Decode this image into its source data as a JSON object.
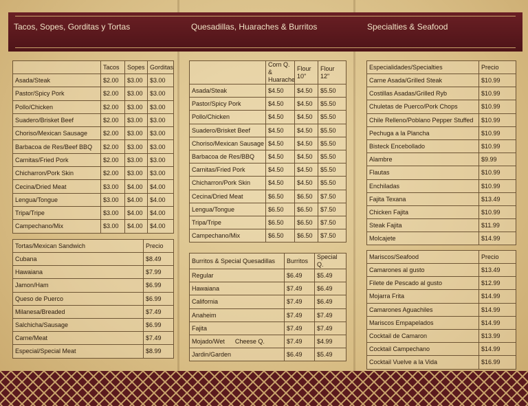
{
  "panels": [
    {
      "title": "Tacos, Sopes, Gorditas y Tortas",
      "tables": [
        {
          "columns": [
            "Tacos",
            "Sopes",
            "Gorditas"
          ],
          "rows": [
            [
              "Asada/Steak",
              "$2.00",
              "$3.00",
              "$3.00"
            ],
            [
              "Pastor/Spicy Pork",
              "$2.00",
              "$3.00",
              "$3.00"
            ],
            [
              "Pollo/Chicken",
              "$2.00",
              "$3.00",
              "$3.00"
            ],
            [
              "Suadero/Brisket Beef",
              "$2.00",
              "$3.00",
              "$3.00"
            ],
            [
              "Choriso/Mexican Sausage",
              "$2.00",
              "$3.00",
              "$3.00"
            ],
            [
              "Barbacoa de Res/Beef BBQ",
              "$2.00",
              "$3.00",
              "$3.00"
            ],
            [
              "Carnitas/Fried Pork",
              "$2.00",
              "$3.00",
              "$3.00"
            ],
            [
              "Chicharron/Pork Skin",
              "$2.00",
              "$3.00",
              "$3.00"
            ],
            [
              "Cecina/Dried Meat",
              "$3.00",
              "$4.00",
              "$4.00"
            ],
            [
              "Lengua/Tongue",
              "$3.00",
              "$4.00",
              "$4.00"
            ],
            [
              "Tripa/Tripe",
              "$3.00",
              "$4.00",
              "$4.00"
            ],
            [
              "Campechano/Mix",
              "$3.00",
              "$4.00",
              "$4.00"
            ]
          ]
        },
        {
          "columns": [
            "Tortas/Mexican Sandwich",
            "Precio"
          ],
          "rows": [
            [
              "Cubana",
              "$8.49"
            ],
            [
              "Hawaiana",
              "$7.99"
            ],
            [
              "Jamon/Ham",
              "$6.99"
            ],
            [
              "Queso de Puerco",
              "$6.99"
            ],
            [
              "Milanesa/Breaded",
              "$7.49"
            ],
            [
              "Salchicha/Sausage",
              "$6.99"
            ],
            [
              "Carne/Meat",
              "$7.49"
            ],
            [
              "Especial/Special Meat",
              "$8.99"
            ]
          ]
        }
      ]
    },
    {
      "title": "Quesadillas, Huaraches & Burritos",
      "tables": [
        {
          "columns": [
            "Corn Q. & Huaraches",
            "Flour 10\"",
            "Flour 12\""
          ],
          "rows": [
            [
              "Asada/Steak",
              "$4.50",
              "$4.50",
              "$5.50"
            ],
            [
              "Pastor/Spicy Pork",
              "$4.50",
              "$4.50",
              "$5.50"
            ],
            [
              "Pollo/Chicken",
              "$4.50",
              "$4.50",
              "$5.50"
            ],
            [
              "Suadero/Brisket Beef",
              "$4.50",
              "$4.50",
              "$5.50"
            ],
            [
              "Choriso/Mexican Sausage",
              "$4.50",
              "$4.50",
              "$5.50"
            ],
            [
              "Barbacoa de Res/BBQ",
              "$4.50",
              "$4.50",
              "$5.50"
            ],
            [
              "Carnitas/Fried Pork",
              "$4.50",
              "$4.50",
              "$5.50"
            ],
            [
              "Chicharron/Pork Skin",
              "$4.50",
              "$4.50",
              "$5.50"
            ],
            [
              "Cecina/Dried Meat",
              "$6.50",
              "$6.50",
              "$7.50"
            ],
            [
              "Lengua/Tongue",
              "$6.50",
              "$6.50",
              "$7.50"
            ],
            [
              "Tripa/Tripe",
              "$6.50",
              "$6.50",
              "$7.50"
            ],
            [
              "Campechano/Mix",
              "$6.50",
              "$6.50",
              "$7.50"
            ]
          ]
        },
        {
          "columns": [
            "Burritos & Special Quesadillas",
            "Burritos",
            "Special Q."
          ],
          "rows": [
            [
              "Regular",
              "$6.49",
              "$5.49"
            ],
            [
              "Hawaiana",
              "$7.49",
              "$6.49"
            ],
            [
              "California",
              "$7.49",
              "$6.49"
            ],
            [
              "Anaheim",
              "$7.49",
              "$7.49"
            ],
            [
              "Fajita",
              "$7.49",
              "$7.49"
            ],
            [
              "Mojado/Wet      Cheese Q.",
              "$7.49",
              "$4.99"
            ],
            [
              "Jardin/Garden",
              "$6.49",
              "$5.49"
            ]
          ]
        }
      ]
    },
    {
      "title": "Specialties & Seafood",
      "tables": [
        {
          "columns": [
            "Especialidades/Specialties",
            "Precio"
          ],
          "rows": [
            [
              "Carne Asada/Grilled Steak",
              "$10.99"
            ],
            [
              "Costillas Asadas/Grilled Ryb",
              "$10.99"
            ],
            [
              "Chuletas de Puerco/Pork Chops",
              "$10.99"
            ],
            [
              "Chile Relleno/Poblano Pepper Stuffed",
              "$10.99"
            ],
            [
              "Pechuga a la Plancha",
              "$10.99"
            ],
            [
              "Bisteck Encebollado",
              "$10.99"
            ],
            [
              "Alambre",
              "$9.99"
            ],
            [
              "Flautas",
              "$10.99"
            ],
            [
              "Enchiladas",
              "$10.99"
            ],
            [
              "Fajita Texana",
              "$13.49"
            ],
            [
              "Chicken Fajita",
              "$10.99"
            ],
            [
              "Steak Fajita",
              "$11.99"
            ],
            [
              "Molcajete",
              "$14.99"
            ]
          ]
        },
        {
          "columns": [
            "Mariscos/Seafood",
            "Precio"
          ],
          "rows": [
            [
              "Camarones al gusto",
              "$13.49"
            ],
            [
              "Filete de Pescado al gusto",
              "$12.99"
            ],
            [
              "Mojarra Frita",
              "$14.99"
            ],
            [
              "Camarones Aguachiles",
              "$14.99"
            ],
            [
              "Mariscos Empapelados",
              "$14.99"
            ],
            [
              "Cocktail de Camaron",
              "$13.99"
            ],
            [
              "Cocktail Campechano",
              "$14.99"
            ],
            [
              "Cocktail Vuelve a la Vida",
              "$16.99"
            ]
          ]
        }
      ]
    }
  ]
}
